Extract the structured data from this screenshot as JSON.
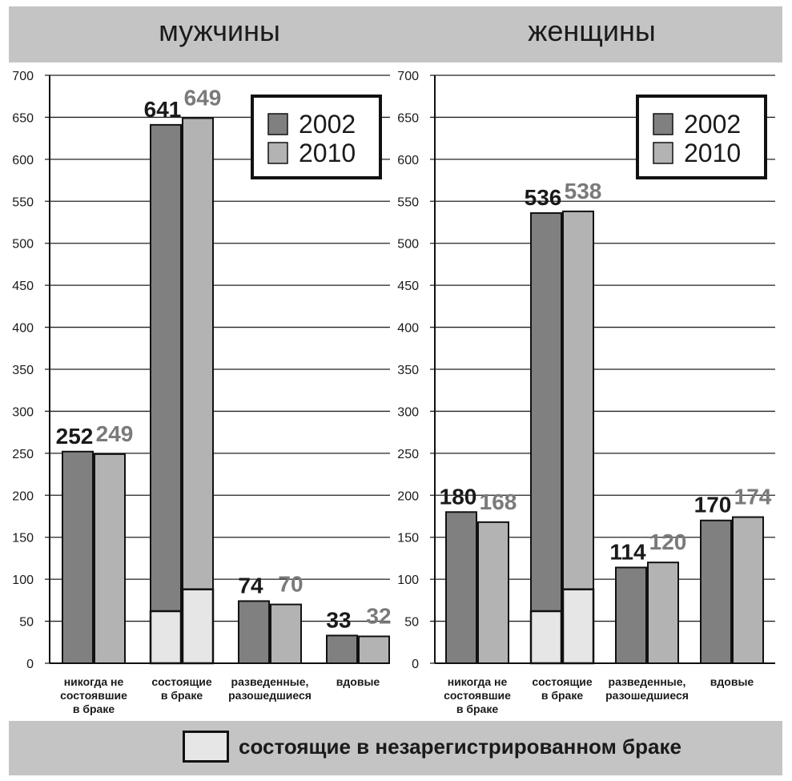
{
  "header": {
    "men": "мужчины",
    "women": "женщины"
  },
  "footer": {
    "note": "состоящие в незарегистрированном браке"
  },
  "colors": {
    "y2002": "#808080",
    "y2010": "#b3b3b3",
    "unregistered": "#e6e6e6",
    "label2002": "#1a1a1a",
    "label2010": "#7a7a7a",
    "band": "#c4c4c4"
  },
  "chart_data": [
    {
      "type": "bar",
      "title": "мужчины",
      "categories": [
        "никогда не состоявшие в браке",
        "состоящие в браке",
        "разведенные, разошедшиеся",
        "вдовые"
      ],
      "category_lines": [
        [
          "никогда не",
          "состоявшие",
          "в браке"
        ],
        [
          "состоящие",
          "в браке"
        ],
        [
          "разведенные,",
          "разошедшиеся"
        ],
        [
          "вдовые"
        ]
      ],
      "series": [
        {
          "name": "2002",
          "values": [
            252,
            641,
            74,
            33
          ],
          "labels": [
            "252",
            "641",
            "74",
            "33"
          ]
        },
        {
          "name": "2010",
          "values": [
            249,
            649,
            70,
            32
          ],
          "labels": [
            "249",
            "649",
            "70",
            "32"
          ]
        }
      ],
      "unregistered": {
        "category_index": 1,
        "values": [
          62,
          88
        ]
      },
      "ylim": [
        0,
        700
      ],
      "yticks": [
        0,
        50,
        100,
        150,
        200,
        250,
        300,
        350,
        400,
        450,
        500,
        550,
        600,
        650,
        700
      ],
      "legend": {
        "position": "top-right",
        "entries": [
          "2002",
          "2010"
        ]
      },
      "grid": true
    },
    {
      "type": "bar",
      "title": "женщины",
      "categories": [
        "никогда не состоявшие в браке",
        "состоящие в браке",
        "разведенные, разошедшиеся",
        "вдовые"
      ],
      "category_lines": [
        [
          "никогда не",
          "состоявшие",
          "в браке"
        ],
        [
          "состоящие",
          "в браке"
        ],
        [
          "разведенные,",
          "разошедшиеся"
        ],
        [
          "вдовые"
        ]
      ],
      "series": [
        {
          "name": "2002",
          "values": [
            180,
            536,
            114,
            170
          ],
          "labels": [
            "180",
            "536",
            "114",
            "170"
          ]
        },
        {
          "name": "2010",
          "values": [
            168,
            538,
            120,
            174
          ],
          "labels": [
            "168",
            "538",
            "120",
            "174"
          ]
        }
      ],
      "unregistered": {
        "category_index": 1,
        "values": [
          62,
          88
        ]
      },
      "ylim": [
        0,
        700
      ],
      "yticks": [
        0,
        50,
        100,
        150,
        200,
        250,
        300,
        350,
        400,
        450,
        500,
        550,
        600,
        650,
        700
      ],
      "legend": {
        "position": "top-right",
        "entries": [
          "2002",
          "2010"
        ]
      },
      "grid": true
    }
  ]
}
